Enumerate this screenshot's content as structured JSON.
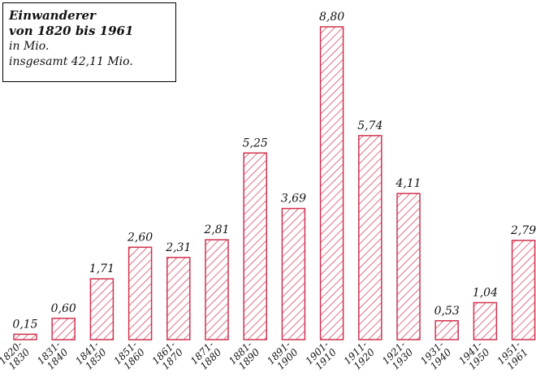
{
  "legend": {
    "title_line1": "Einwanderer",
    "title_line2": "von 1820 bis 1961",
    "unit": "in Mio.",
    "total": "insgesamt 42,11 Mio."
  },
  "colors": {
    "bar_stroke": "#d0334f",
    "bar_hatch": "#d0334f",
    "text": "#111111"
  },
  "chart_data": {
    "type": "bar",
    "title": "Einwanderer von 1820 bis 1961",
    "ylabel": "",
    "xlabel": "",
    "unit": "in Mio.",
    "total": "insgesamt 42,11 Mio.",
    "categories": [
      [
        "1820-",
        "1830"
      ],
      [
        "1831-",
        "1840"
      ],
      [
        "1841-",
        "1850"
      ],
      [
        "1851-",
        "1860"
      ],
      [
        "1861-",
        "1870"
      ],
      [
        "1871-",
        "1880"
      ],
      [
        "1881-",
        "1890"
      ],
      [
        "1891-",
        "1900"
      ],
      [
        "1901-",
        "1910"
      ],
      [
        "1911-",
        "1920"
      ],
      [
        "1921-",
        "1930"
      ],
      [
        "1931-",
        "1940"
      ],
      [
        "1941-",
        "1950"
      ],
      [
        "1951-",
        "1961"
      ]
    ],
    "values": [
      0.15,
      0.6,
      1.71,
      2.6,
      2.31,
      2.81,
      5.25,
      3.69,
      8.8,
      5.74,
      4.11,
      0.53,
      1.04,
      2.79
    ],
    "value_labels": [
      "0,15",
      "0,60",
      "1,71",
      "2,60",
      "2,31",
      "2,81",
      "5,25",
      "3,69",
      "8,80",
      "5,74",
      "4,11",
      "0,53",
      "1,04",
      "2,79"
    ],
    "ylim": [
      0,
      8.8
    ],
    "grid": false,
    "pattern": "diagonal-hatch"
  }
}
